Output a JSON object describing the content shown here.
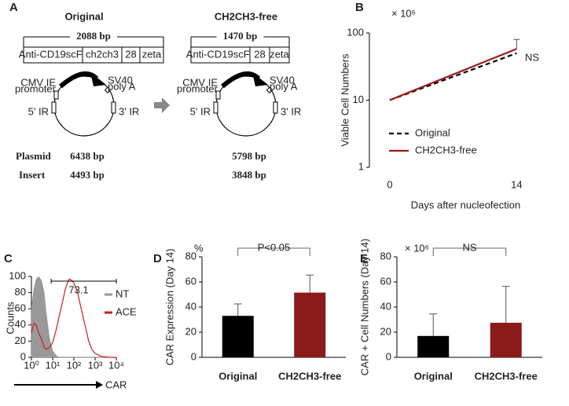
{
  "diagram": {
    "panel": "A",
    "constructs": [
      {
        "title": "Original",
        "insert_size": "2088 bp",
        "segments": [
          "Anti-CD19scFv",
          "ch2ch3",
          "28",
          "zeta"
        ],
        "plasmid_size": "6438 bp",
        "insert_length": "4493 bp"
      },
      {
        "title": "CH2CH3-free",
        "insert_size": "1470 bp",
        "segments": [
          "Anti-CD19scFv",
          "28",
          "zeta"
        ],
        "plasmid_size": "5798 bp",
        "insert_length": "3848 bp"
      }
    ],
    "map_labels": {
      "promoter": [
        "CMV IE",
        "promoter"
      ],
      "polya": [
        "SV40",
        "poly A"
      ],
      "ir5": "5' IR",
      "ir3": "3' IR"
    },
    "row_labels": [
      "Plasmid",
      "Insert"
    ]
  },
  "chart_data": [
    {
      "type": "line",
      "panel": "B",
      "multiplier": "× 10⁶",
      "annotation": "NS",
      "y_label": "Viable Cell Numbers",
      "x_label": "Days after nucleofection",
      "x": [
        0,
        14
      ],
      "xlim": [
        -2.25,
        19
      ],
      "xticks": [
        0,
        14
      ],
      "ylim": [
        1,
        100
      ],
      "yticks": [
        1,
        10,
        100
      ],
      "log_y": true,
      "series": [
        {
          "name": "Original",
          "color": "#000000",
          "dashed": true,
          "values": [
            10,
            50
          ],
          "errors": [
            null,
            null
          ]
        },
        {
          "name": "CH2CH3-free",
          "color": "#9b1c1c",
          "dashed": false,
          "values": [
            10,
            58
          ],
          "errors": [
            null,
            22
          ]
        }
      ]
    },
    {
      "type": "histogram-area",
      "panel": "C",
      "y_label": "Counts",
      "x_label": "CAR",
      "log_x": true,
      "x": [
        1,
        1.3,
        1.7,
        2.2,
        3,
        4,
        5,
        7,
        10,
        15,
        20,
        30,
        40,
        60,
        80,
        100,
        150,
        200,
        300,
        500,
        700,
        1000,
        2000,
        5000,
        10000
      ],
      "xlim": [
        1,
        10000
      ],
      "xticks": [
        {
          "value": 1,
          "label": "10⁰"
        },
        {
          "value": 10,
          "label": "10¹"
        },
        {
          "value": 100,
          "label": "10²"
        },
        {
          "value": 1000,
          "label": "10³"
        },
        {
          "value": 10000,
          "label": "10⁴"
        }
      ],
      "ylim": [
        0,
        100
      ],
      "yticks": [
        0,
        20,
        40,
        60,
        80,
        100
      ],
      "gate": [
        8.5,
        10000
      ],
      "gate_value": 73.1,
      "series": [
        {
          "name": "NT",
          "color": "#999999",
          "filled": true,
          "values": [
            60,
            85,
            97,
            100,
            95,
            80,
            55,
            25,
            8,
            2,
            0,
            0,
            0,
            0,
            0,
            0,
            0,
            0,
            0,
            0,
            0,
            0,
            0,
            0,
            0
          ]
        },
        {
          "name": "ACE",
          "color": "#d01c1c",
          "filled": false,
          "values": [
            30,
            42,
            40,
            30,
            22,
            12,
            10,
            12,
            18,
            35,
            50,
            70,
            85,
            97,
            95,
            92,
            80,
            65,
            45,
            20,
            10,
            5,
            1,
            0,
            0
          ]
        }
      ]
    },
    {
      "type": "bar",
      "panel": "D",
      "unit_label": "%",
      "annotation": "P<0.05",
      "y_label": "CAR Expression (Day 14)",
      "categories": [
        "Original",
        "CH2CH3-free"
      ],
      "values": [
        33,
        51.5
      ],
      "errors": [
        9.5,
        14
      ],
      "colors": [
        "#000000",
        "#8b1a1a"
      ],
      "ylim": [
        0,
        80
      ],
      "yticks": [
        0,
        20,
        40,
        60,
        80
      ]
    },
    {
      "type": "bar",
      "panel": "E",
      "unit_label": "× 10⁶",
      "annotation": "NS",
      "y_label": "CAR + Cell Numbers (Day 14)",
      "categories": [
        "Original",
        "CH2CH3-free"
      ],
      "values": [
        17,
        27.5
      ],
      "errors": [
        17.5,
        29
      ],
      "colors": [
        "#000000",
        "#8b1a1a"
      ],
      "ylim": [
        0,
        80
      ],
      "yticks": [
        0,
        20,
        40,
        60,
        80
      ]
    }
  ]
}
